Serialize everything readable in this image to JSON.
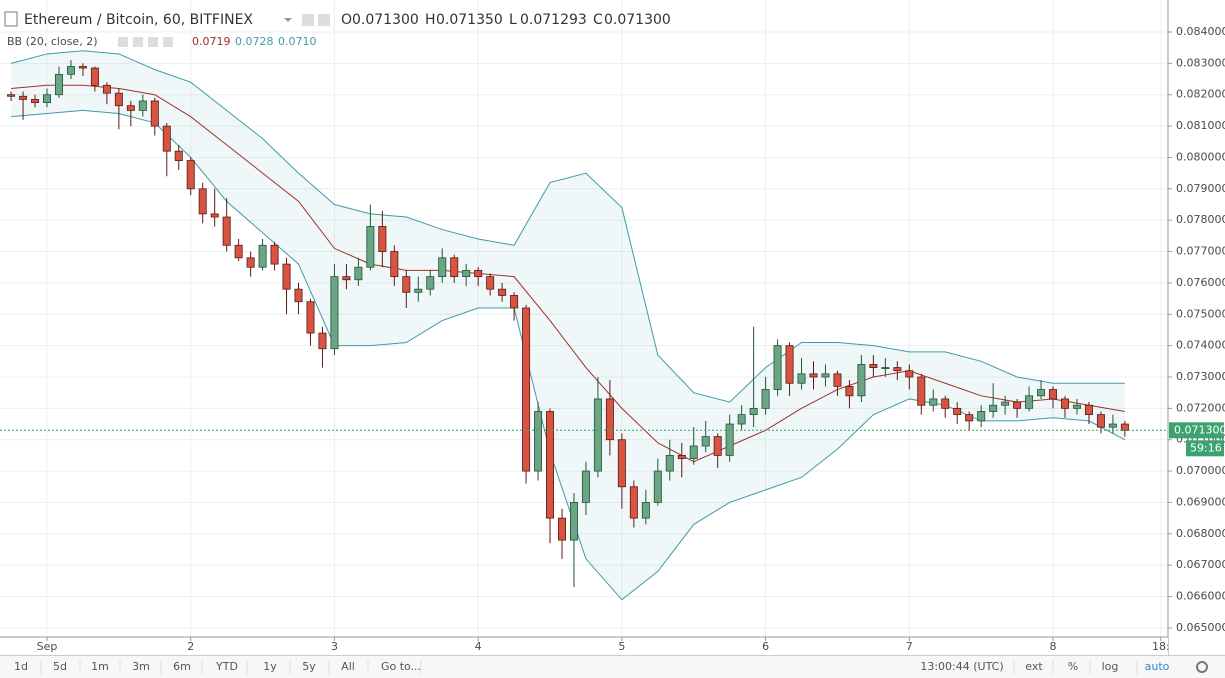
{
  "header": {
    "symbol": "Ethereum / Bitcoin, 60, BITFINEX",
    "ohlc": [
      {
        "label": "O",
        "value": "0.071300"
      },
      {
        "label": "H",
        "value": "0.071350"
      },
      {
        "label": "L",
        "value": "0.071293"
      },
      {
        "label": "C",
        "value": "0.071300"
      }
    ]
  },
  "indicator": {
    "name": "BB (20, close, 2)",
    "values": [
      "0.0719",
      "0.0728",
      "0.0710"
    ],
    "colors": [
      "#a0302a",
      "#3d9ca8",
      "#3d9ca8"
    ]
  },
  "price_marker": {
    "price": "0.071300",
    "countdown": "59:16"
  },
  "toolbar": {
    "ranges": [
      "1d",
      "5d",
      "1m",
      "3m",
      "6m",
      "YTD",
      "1y",
      "5y",
      "All",
      "Go to..."
    ],
    "clock": "13:00:44 (UTC)",
    "options": [
      "ext",
      "%",
      "log",
      "auto"
    ]
  },
  "chart_data": {
    "type": "candlestick",
    "up_color": "#6ba583",
    "down_color": "#d75442",
    "grid": true,
    "xlim": [
      -7.85,
      187.2
    ],
    "ylim": [
      0.06471,
      0.08502
    ],
    "xticks": [
      {
        "value": 0,
        "label": "Sep"
      },
      {
        "value": 24,
        "label": "2"
      },
      {
        "value": 48,
        "label": "3"
      },
      {
        "value": 72,
        "label": "4"
      },
      {
        "value": 96,
        "label": "5"
      },
      {
        "value": 120,
        "label": "6"
      },
      {
        "value": 144,
        "label": "7"
      },
      {
        "value": 168,
        "label": "8"
      },
      {
        "value": 186,
        "label": "18:"
      }
    ],
    "yticks": [
      {
        "value": 0.065,
        "label": "0.065000"
      },
      {
        "value": 0.066,
        "label": "0.066000"
      },
      {
        "value": 0.067,
        "label": "0.067000"
      },
      {
        "value": 0.068,
        "label": "0.068000"
      },
      {
        "value": 0.069,
        "label": "0.069000"
      },
      {
        "value": 0.07,
        "label": "0.070000"
      },
      {
        "value": 0.071,
        "label": "0.071000"
      },
      {
        "value": 0.072,
        "label": "0.072000"
      },
      {
        "value": 0.073,
        "label": "0.073000"
      },
      {
        "value": 0.074,
        "label": "0.074000"
      },
      {
        "value": 0.075,
        "label": "0.075000"
      },
      {
        "value": 0.076,
        "label": "0.076000"
      },
      {
        "value": 0.077,
        "label": "0.077000"
      },
      {
        "value": 0.078,
        "label": "0.078000"
      },
      {
        "value": 0.079,
        "label": "0.079000"
      },
      {
        "value": 0.08,
        "label": "0.080000"
      },
      {
        "value": 0.081,
        "label": "0.081000"
      },
      {
        "value": 0.082,
        "label": "0.082000"
      },
      {
        "value": 0.083,
        "label": "0.083000"
      },
      {
        "value": 0.084,
        "label": "0.084000"
      }
    ],
    "x": [
      -6,
      -4,
      -2,
      0,
      2,
      4,
      6,
      8,
      10,
      12,
      14,
      16,
      18,
      20,
      22,
      24,
      26,
      28,
      30,
      32,
      34,
      36,
      38,
      40,
      42,
      44,
      46,
      48,
      50,
      52,
      54,
      56,
      58,
      60,
      62,
      64,
      66,
      68,
      70,
      72,
      74,
      76,
      78,
      80,
      82,
      84,
      86,
      88,
      90,
      92,
      94,
      96,
      98,
      100,
      102,
      104,
      106,
      108,
      110,
      112,
      114,
      116,
      118,
      120,
      122,
      124,
      126,
      128,
      130,
      132,
      134,
      136,
      138,
      140,
      142,
      144,
      146,
      148,
      150,
      152,
      154,
      156,
      158,
      160,
      162,
      164,
      166,
      168,
      170,
      172,
      174,
      176,
      178,
      180
    ],
    "ohlc": [
      [
        0.082,
        0.0821,
        0.0818,
        0.08195
      ],
      [
        0.08195,
        0.0821,
        0.0812,
        0.08185
      ],
      [
        0.08185,
        0.082,
        0.0816,
        0.08175
      ],
      [
        0.08175,
        0.0822,
        0.0816,
        0.082
      ],
      [
        0.082,
        0.0829,
        0.0819,
        0.08265
      ],
      [
        0.08265,
        0.0831,
        0.0825,
        0.0829
      ],
      [
        0.0829,
        0.083,
        0.0826,
        0.08285
      ],
      [
        0.08285,
        0.0829,
        0.0821,
        0.0823
      ],
      [
        0.0823,
        0.0824,
        0.0817,
        0.08205
      ],
      [
        0.08205,
        0.0822,
        0.0809,
        0.08165
      ],
      [
        0.08165,
        0.0818,
        0.081,
        0.0815
      ],
      [
        0.0815,
        0.082,
        0.0813,
        0.0818
      ],
      [
        0.0818,
        0.0819,
        0.0807,
        0.081
      ],
      [
        0.081,
        0.0811,
        0.0794,
        0.0802
      ],
      [
        0.0802,
        0.0804,
        0.0796,
        0.0799
      ],
      [
        0.0799,
        0.08,
        0.0788,
        0.079
      ],
      [
        0.079,
        0.0792,
        0.0779,
        0.0782
      ],
      [
        0.0782,
        0.079,
        0.0778,
        0.0781
      ],
      [
        0.0781,
        0.0787,
        0.077,
        0.0772
      ],
      [
        0.0772,
        0.0774,
        0.0767,
        0.0768
      ],
      [
        0.0768,
        0.077,
        0.0762,
        0.0765
      ],
      [
        0.0765,
        0.0774,
        0.0764,
        0.0772
      ],
      [
        0.0772,
        0.0773,
        0.0764,
        0.0766
      ],
      [
        0.0766,
        0.0768,
        0.075,
        0.0758
      ],
      [
        0.0758,
        0.076,
        0.075,
        0.0754
      ],
      [
        0.0754,
        0.0755,
        0.074,
        0.0744
      ],
      [
        0.0744,
        0.0746,
        0.0733,
        0.0739
      ],
      [
        0.0739,
        0.0766,
        0.0737,
        0.0762
      ],
      [
        0.0762,
        0.0766,
        0.0758,
        0.0761
      ],
      [
        0.0761,
        0.0768,
        0.0759,
        0.0765
      ],
      [
        0.0765,
        0.0785,
        0.0764,
        0.0778
      ],
      [
        0.0778,
        0.0783,
        0.0765,
        0.077
      ],
      [
        0.077,
        0.0772,
        0.0759,
        0.0762
      ],
      [
        0.0762,
        0.0764,
        0.0752,
        0.0757
      ],
      [
        0.0757,
        0.0762,
        0.0754,
        0.0758
      ],
      [
        0.0758,
        0.0764,
        0.0756,
        0.0762
      ],
      [
        0.0762,
        0.0771,
        0.076,
        0.0768
      ],
      [
        0.0768,
        0.0769,
        0.076,
        0.0762
      ],
      [
        0.0762,
        0.0766,
        0.0759,
        0.0764
      ],
      [
        0.0764,
        0.0765,
        0.0759,
        0.0762
      ],
      [
        0.0762,
        0.0763,
        0.0756,
        0.0758
      ],
      [
        0.0758,
        0.076,
        0.0754,
        0.0756
      ],
      [
        0.0756,
        0.0757,
        0.0748,
        0.0752
      ],
      [
        0.0752,
        0.0753,
        0.0696,
        0.07
      ],
      [
        0.07,
        0.0722,
        0.0697,
        0.0719
      ],
      [
        0.0719,
        0.072,
        0.0677,
        0.0685
      ],
      [
        0.0685,
        0.0688,
        0.0672,
        0.0678
      ],
      [
        0.0678,
        0.0693,
        0.0663,
        0.069
      ],
      [
        0.069,
        0.0703,
        0.0686,
        0.07
      ],
      [
        0.07,
        0.073,
        0.0698,
        0.0723
      ],
      [
        0.0723,
        0.0729,
        0.0705,
        0.071
      ],
      [
        0.071,
        0.0712,
        0.0688,
        0.0695
      ],
      [
        0.0695,
        0.0697,
        0.0682,
        0.0685
      ],
      [
        0.0685,
        0.0694,
        0.0683,
        0.069
      ],
      [
        0.069,
        0.0704,
        0.0689,
        0.07
      ],
      [
        0.07,
        0.071,
        0.0697,
        0.0705
      ],
      [
        0.0705,
        0.0709,
        0.0698,
        0.0704
      ],
      [
        0.0704,
        0.0714,
        0.0702,
        0.0708
      ],
      [
        0.0708,
        0.0716,
        0.0706,
        0.0711
      ],
      [
        0.0711,
        0.0712,
        0.0701,
        0.0705
      ],
      [
        0.0705,
        0.0718,
        0.0703,
        0.0715
      ],
      [
        0.0715,
        0.0721,
        0.0713,
        0.0718
      ],
      [
        0.0718,
        0.0746,
        0.0714,
        0.072
      ],
      [
        0.072,
        0.073,
        0.0718,
        0.0726
      ],
      [
        0.0726,
        0.0742,
        0.0724,
        0.074
      ],
      [
        0.074,
        0.0741,
        0.0724,
        0.0728
      ],
      [
        0.0728,
        0.0736,
        0.0726,
        0.0731
      ],
      [
        0.0731,
        0.0735,
        0.0726,
        0.073
      ],
      [
        0.073,
        0.0734,
        0.0727,
        0.0731
      ],
      [
        0.0731,
        0.0732,
        0.0724,
        0.0727
      ],
      [
        0.0727,
        0.0729,
        0.072,
        0.0724
      ],
      [
        0.0724,
        0.0737,
        0.0722,
        0.0734
      ],
      [
        0.0734,
        0.0737,
        0.073,
        0.0733
      ],
      [
        0.0733,
        0.0736,
        0.073,
        0.0733
      ],
      [
        0.0733,
        0.0735,
        0.0729,
        0.0732
      ],
      [
        0.0732,
        0.0734,
        0.0726,
        0.073
      ],
      [
        0.073,
        0.0731,
        0.0718,
        0.0721
      ],
      [
        0.0721,
        0.0726,
        0.0719,
        0.0723
      ],
      [
        0.0723,
        0.0724,
        0.0717,
        0.072
      ],
      [
        0.072,
        0.0722,
        0.0715,
        0.0718
      ],
      [
        0.0718,
        0.0719,
        0.0713,
        0.0716
      ],
      [
        0.0716,
        0.0721,
        0.0714,
        0.0719
      ],
      [
        0.0719,
        0.0728,
        0.0717,
        0.0721
      ],
      [
        0.0721,
        0.0724,
        0.0718,
        0.0722
      ],
      [
        0.0722,
        0.0723,
        0.0717,
        0.072
      ],
      [
        0.072,
        0.0727,
        0.0719,
        0.0724
      ],
      [
        0.0724,
        0.0729,
        0.0723,
        0.0726
      ],
      [
        0.0726,
        0.0727,
        0.072,
        0.0723
      ],
      [
        0.0723,
        0.0724,
        0.0717,
        0.072
      ],
      [
        0.072,
        0.0723,
        0.0718,
        0.0721
      ],
      [
        0.0721,
        0.0722,
        0.0715,
        0.0718
      ],
      [
        0.0718,
        0.0719,
        0.0712,
        0.0714
      ],
      [
        0.0714,
        0.0718,
        0.0712,
        0.0715
      ],
      [
        0.0715,
        0.0716,
        0.0711,
        0.0713
      ]
    ],
    "bands": {
      "x": [
        -6,
        0,
        6,
        12,
        18,
        24,
        30,
        36,
        42,
        48,
        54,
        60,
        66,
        72,
        78,
        84,
        90,
        96,
        102,
        108,
        114,
        120,
        126,
        132,
        138,
        144,
        150,
        156,
        162,
        168,
        174,
        180
      ],
      "upper": [
        0.083,
        0.0833,
        0.0834,
        0.0833,
        0.0828,
        0.0824,
        0.0815,
        0.0806,
        0.0795,
        0.0785,
        0.0782,
        0.0781,
        0.0777,
        0.0774,
        0.0772,
        0.0792,
        0.0795,
        0.0784,
        0.0737,
        0.0725,
        0.0722,
        0.0733,
        0.0741,
        0.0741,
        0.074,
        0.0738,
        0.0738,
        0.0735,
        0.073,
        0.0728,
        0.0728,
        0.0728
      ],
      "basis": [
        0.0822,
        0.0823,
        0.0823,
        0.0822,
        0.082,
        0.0813,
        0.0804,
        0.0795,
        0.0786,
        0.0771,
        0.0766,
        0.0764,
        0.0764,
        0.0763,
        0.0762,
        0.0748,
        0.0733,
        0.072,
        0.0709,
        0.0703,
        0.0708,
        0.0713,
        0.072,
        0.0726,
        0.073,
        0.0732,
        0.0728,
        0.0724,
        0.0722,
        0.0723,
        0.0721,
        0.0719
      ],
      "lower": [
        0.0813,
        0.0814,
        0.0815,
        0.0814,
        0.0811,
        0.08,
        0.0786,
        0.0776,
        0.0766,
        0.074,
        0.074,
        0.0741,
        0.0748,
        0.0752,
        0.0752,
        0.0706,
        0.0672,
        0.0659,
        0.0668,
        0.0683,
        0.069,
        0.0694,
        0.0698,
        0.0707,
        0.0718,
        0.0723,
        0.0721,
        0.0716,
        0.0716,
        0.0717,
        0.0716,
        0.071
      ],
      "band_color": "#3d9ca8",
      "basis_color": "#a0302a"
    }
  }
}
